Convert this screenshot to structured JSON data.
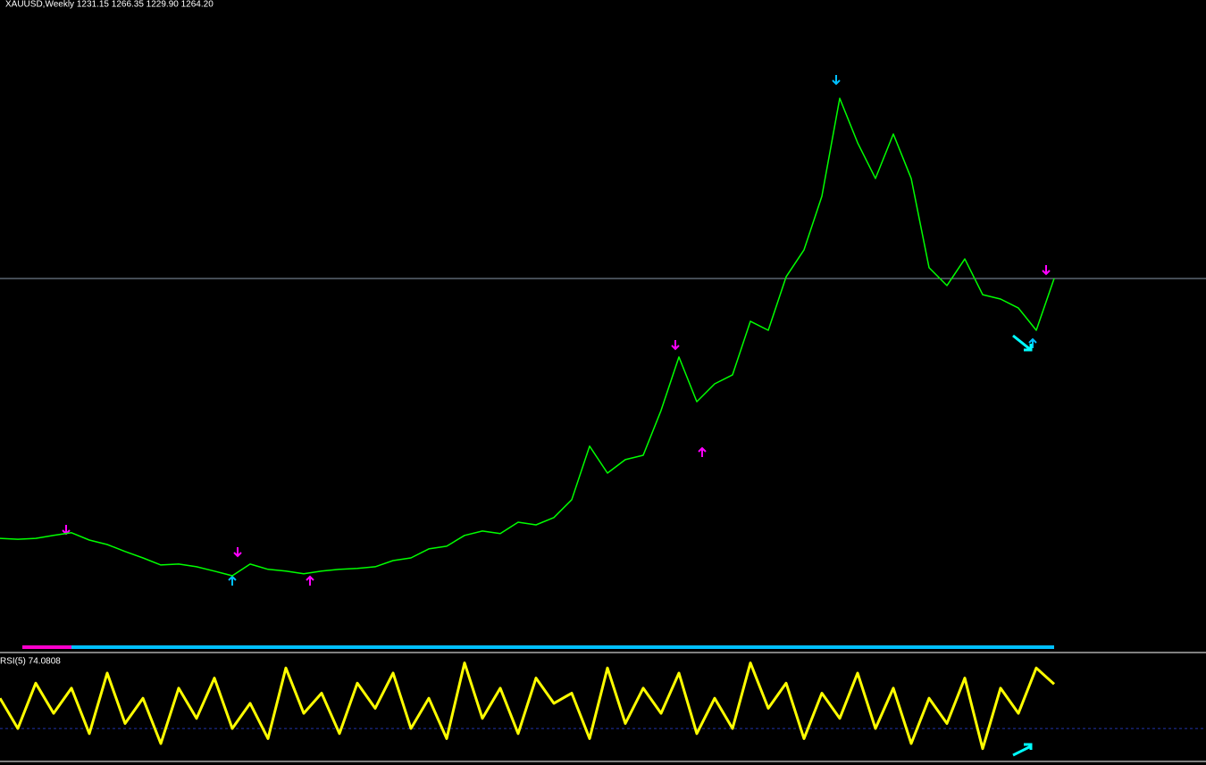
{
  "chart_data": [
    {
      "type": "line",
      "title": "XAUUSD,Weekly  1231.15 1266.35 1229.90 1264.20",
      "color": "#00ff00",
      "ylim": [
        4,
        2216
      ],
      "values": [
        376,
        373,
        376,
        386,
        395,
        370,
        355,
        331,
        309,
        285,
        288,
        279,
        264,
        248,
        288,
        270,
        264,
        255,
        264,
        270,
        273,
        279,
        300,
        309,
        340,
        349,
        386,
        401,
        392,
        431,
        422,
        447,
        508,
        691,
        599,
        645,
        660,
        813,
        996,
        843,
        904,
        935,
        1118,
        1087,
        1270,
        1362,
        1545,
        1880,
        1728,
        1606,
        1758,
        1606,
        1301,
        1240,
        1331,
        1209,
        1194,
        1163,
        1087,
        1264
      ]
    },
    {
      "type": "line",
      "title": "RSI(5) 74.0808",
      "color": "#ffff00",
      "ylim": [
        0,
        100
      ],
      "levels": [
        30
      ],
      "values": [
        60,
        30,
        75,
        45,
        70,
        25,
        85,
        35,
        60,
        15,
        70,
        40,
        80,
        30,
        55,
        20,
        90,
        45,
        65,
        25,
        75,
        50,
        85,
        30,
        60,
        20,
        95,
        40,
        70,
        25,
        80,
        55,
        65,
        20,
        90,
        35,
        70,
        45,
        85,
        25,
        60,
        30,
        95,
        50,
        75,
        20,
        65,
        40,
        85,
        30,
        70,
        15,
        60,
        35,
        80,
        10,
        70,
        45,
        90,
        74
      ]
    }
  ]
}
